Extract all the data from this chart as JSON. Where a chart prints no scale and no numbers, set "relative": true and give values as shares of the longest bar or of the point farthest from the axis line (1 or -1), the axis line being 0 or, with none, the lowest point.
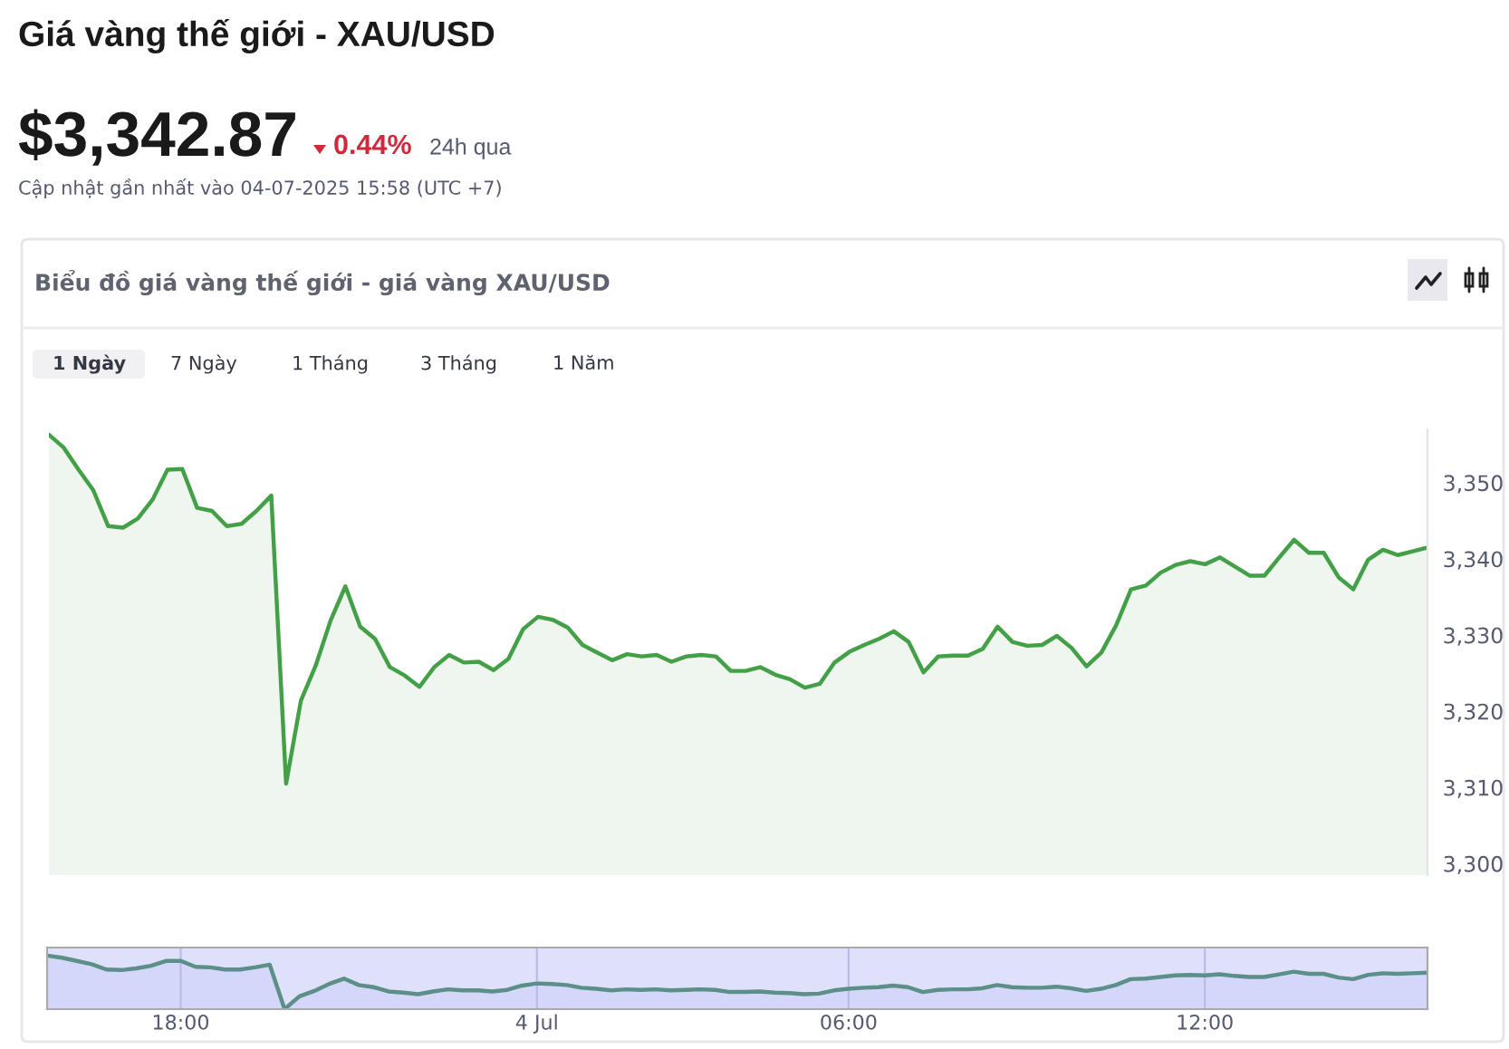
{
  "chart_data": [
    {
      "type": "area",
      "title": "Giá vàng thế giới - XAU/USD",
      "subtitle": "Biểu đồ giá vàng thế giới - giá vàng XAU/USD",
      "annotations": [
        "$3,342.87",
        "0.44%",
        "24h qua",
        "Cập nhật gần nhất vào 04-07-2025 15:58 (UTC +7)",
        "1 Ngày",
        "7 Ngày",
        "1 Tháng",
        "3 Tháng",
        "1 Năm"
      ],
      "categories": [
        null,
        null,
        null,
        null,
        null,
        null,
        null,
        null,
        null,
        null,
        null,
        null,
        null,
        null,
        null,
        null,
        null,
        null,
        null,
        null,
        null,
        null,
        null,
        null,
        null,
        null,
        null,
        null,
        null,
        null,
        null,
        null,
        null,
        null,
        null,
        null,
        null,
        null,
        null,
        null,
        null,
        null,
        null,
        null,
        null,
        null,
        null,
        null,
        null,
        null,
        null,
        null,
        null,
        null,
        null,
        null,
        null,
        null,
        null,
        null,
        null,
        null,
        null,
        null,
        null,
        null,
        null,
        null,
        null,
        null,
        null,
        null,
        null,
        null,
        null,
        null,
        null,
        null,
        null,
        null,
        null,
        null,
        null,
        null,
        null,
        null,
        null,
        null,
        null,
        null,
        null,
        null,
        null,
        null
      ],
      "series": [
        {
          "color": "#43a047",
          "values": [
            3356.3,
            3354.6,
            3351.7,
            3349.0,
            3344.3,
            3344.1,
            3345.3,
            3347.8,
            3351.7,
            3351.8,
            3346.7,
            3346.3,
            3344.3,
            3344.6,
            3346.3,
            3348.3,
            3310.5,
            3321.4,
            3326.0,
            3331.9,
            3336.4,
            3331.1,
            3329.5,
            3325.8,
            3324.7,
            3323.2,
            3325.8,
            3327.4,
            3326.4,
            3326.5,
            3325.4,
            3326.9,
            3330.8,
            3332.4,
            3332.0,
            3331.0,
            3328.7,
            3327.7,
            3326.7,
            3327.5,
            3327.2,
            3327.4,
            3326.5,
            3327.2,
            3327.4,
            3327.2,
            3325.3,
            3325.3,
            3325.8,
            3324.8,
            3324.2,
            3323.1,
            3323.6,
            3326.4,
            3327.8,
            3328.7,
            3329.5,
            3330.5,
            3329.1,
            3325.1,
            3327.2,
            3327.3,
            3327.3,
            3328.2,
            3331.1,
            3329.1,
            3328.6,
            3328.7,
            3329.9,
            3328.3,
            3325.9,
            3327.7,
            3331.3,
            3336.0,
            3336.5,
            3338.2,
            3339.2,
            3339.7,
            3339.3,
            3340.2,
            3339.0,
            3337.8,
            3337.8,
            3340.2,
            3342.5,
            3340.8,
            3340.8,
            3337.6,
            3336.0,
            3339.9,
            3341.2,
            3340.5,
            3341.0,
            3341.5
          ]
        }
      ],
      "ylim": [
        3298.5,
        3357
      ],
      "yticks": [
        {
          "value": 3300,
          "label": "3,300"
        },
        {
          "value": 3310,
          "label": "3,310"
        },
        {
          "value": 3320,
          "label": "3,320"
        },
        {
          "value": 3330,
          "label": "3,330"
        },
        {
          "value": 3340,
          "label": "3,340"
        },
        {
          "value": 3350,
          "label": "3,350"
        }
      ],
      "tick_labels": "y",
      "grid": false,
      "legend": false
    },
    {
      "type": "area",
      "relative": true,
      "categories": [
        null,
        null,
        null,
        null,
        null,
        null,
        null,
        null,
        null,
        "18:00",
        null,
        null,
        null,
        null,
        null,
        null,
        null,
        null,
        null,
        null,
        null,
        null,
        null,
        null,
        null,
        null,
        null,
        null,
        null,
        null,
        null,
        null,
        null,
        "4 Jul",
        null,
        null,
        null,
        null,
        null,
        null,
        null,
        null,
        null,
        null,
        null,
        null,
        null,
        null,
        null,
        null,
        null,
        null,
        null,
        null,
        "06:00",
        null,
        null,
        null,
        null,
        null,
        null,
        null,
        null,
        null,
        null,
        null,
        null,
        null,
        null,
        null,
        null,
        null,
        null,
        null,
        null,
        null,
        null,
        null,
        "12:00",
        null,
        null,
        null,
        null,
        null,
        null,
        null,
        null,
        null,
        null,
        null,
        null,
        null,
        null,
        null
      ],
      "series": [
        {
          "color": "#5b8f88",
          "values": [
            1.0,
            0.96,
            0.9,
            0.84,
            0.74,
            0.73,
            0.76,
            0.81,
            0.9,
            0.9,
            0.79,
            0.78,
            0.74,
            0.74,
            0.78,
            0.83,
            0,
            0.24,
            0.34,
            0.47,
            0.57,
            0.45,
            0.41,
            0.33,
            0.31,
            0.28,
            0.33,
            0.37,
            0.35,
            0.35,
            0.33,
            0.36,
            0.44,
            0.48,
            0.47,
            0.45,
            0.4,
            0.38,
            0.35,
            0.37,
            0.36,
            0.37,
            0.35,
            0.36,
            0.37,
            0.36,
            0.32,
            0.32,
            0.33,
            0.31,
            0.3,
            0.28,
            0.29,
            0.35,
            0.38,
            0.4,
            0.41,
            0.44,
            0.41,
            0.32,
            0.36,
            0.37,
            0.37,
            0.39,
            0.45,
            0.41,
            0.4,
            0.4,
            0.42,
            0.39,
            0.34,
            0.38,
            0.45,
            0.56,
            0.57,
            0.6,
            0.63,
            0.64,
            0.63,
            0.65,
            0.62,
            0.6,
            0.6,
            0.65,
            0.7,
            0.66,
            0.66,
            0.59,
            0.56,
            0.64,
            0.67,
            0.66,
            0.67,
            0.68
          ]
        }
      ],
      "tick_labels": "x",
      "grid": "x",
      "legend": false
    }
  ]
}
